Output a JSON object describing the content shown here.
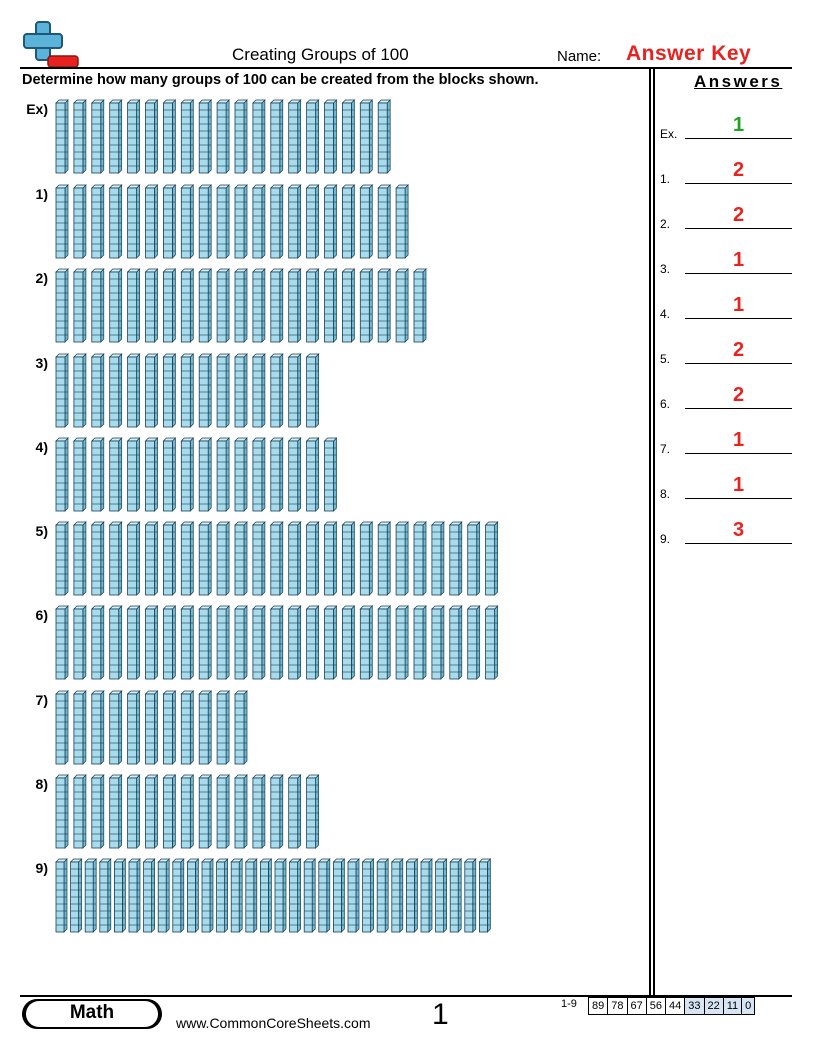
{
  "header": {
    "title": "Creating Groups of 100",
    "name_label": "Name:",
    "name_value": "Answer Key"
  },
  "instructions": "Determine how many groups of 100 can be created from the blocks shown.",
  "answers": {
    "heading": "Answers",
    "items": [
      {
        "label": "Ex.",
        "value": "1"
      },
      {
        "label": "1.",
        "value": "2"
      },
      {
        "label": "2.",
        "value": "2"
      },
      {
        "label": "3.",
        "value": "1"
      },
      {
        "label": "4.",
        "value": "1"
      },
      {
        "label": "5.",
        "value": "2"
      },
      {
        "label": "6.",
        "value": "2"
      },
      {
        "label": "7.",
        "value": "1"
      },
      {
        "label": "8.",
        "value": "1"
      },
      {
        "label": "9.",
        "value": "3"
      }
    ]
  },
  "problems": [
    {
      "label": "Ex)",
      "rods": 19
    },
    {
      "label": "1)",
      "rods": 20
    },
    {
      "label": "2)",
      "rods": 21
    },
    {
      "label": "3)",
      "rods": 15
    },
    {
      "label": "4)",
      "rods": 16
    },
    {
      "label": "5)",
      "rods": 25
    },
    {
      "label": "6)",
      "rods": 25
    },
    {
      "label": "7)",
      "rods": 11
    },
    {
      "label": "8)",
      "rods": 15
    },
    {
      "label": "9)",
      "rods": 30
    }
  ],
  "colors": {
    "answer_red": "#e8231f",
    "answer_green": "#1fa322",
    "rod_fill": "#a8dcec",
    "rod_stroke": "#1a3e52"
  },
  "footer": {
    "subject": "Math",
    "website": "www.CommonCoreSheets.com",
    "page_number": "1",
    "range_label": "1-9",
    "scores": [
      "89",
      "78",
      "67",
      "56",
      "44",
      "33",
      "22",
      "11",
      "0"
    ]
  }
}
